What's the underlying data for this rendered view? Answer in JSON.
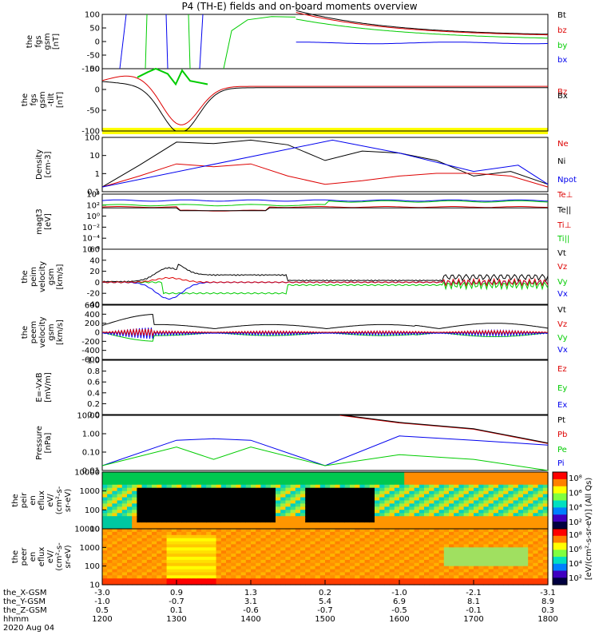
{
  "title": "P4 (TH-E) fields and on-board moments overview",
  "chart_data": {
    "type": "line",
    "date": "2020 Aug 04",
    "x_tick_labels": [
      "1200",
      "1300",
      "1400",
      "1500",
      "1600",
      "1700",
      "1800"
    ],
    "ephemeris": [
      {
        "label": "the_X-GSM",
        "values": [
          "-3.0",
          "0.9",
          "1.3",
          "0.2",
          "-1.0",
          "-2.1",
          "-3.1"
        ]
      },
      {
        "label": "the_Y-GSM",
        "values": [
          "-1.0",
          "-0.7",
          "3.1",
          "5.4",
          "6.9",
          "8.1",
          "8.9"
        ]
      },
      {
        "label": "the_Z-GSM",
        "values": [
          "0.5",
          "0.1",
          "-0.6",
          "-0.7",
          "-0.5",
          "-0.1",
          "0.3"
        ]
      },
      {
        "label": "hhmm",
        "values": [
          "1200",
          "1300",
          "1400",
          "1500",
          "1600",
          "1700",
          "1800"
        ]
      }
    ],
    "panels": [
      {
        "id": "fgs",
        "ylabel": [
          "the",
          "fgs",
          "gsm",
          "[nT]"
        ],
        "ylim": [
          -100,
          100
        ],
        "yticks": [
          "100",
          "50",
          "0",
          "-50",
          "-100"
        ],
        "legend": [
          {
            "name": "Bt",
            "color": "#000000"
          },
          {
            "name": "bz",
            "color": "#dd0000"
          },
          {
            "name": "by",
            "color": "#00cc00"
          },
          {
            "name": "bx",
            "color": "#0000ee"
          }
        ]
      },
      {
        "id": "fgs-tilt",
        "ylabel": [
          "the",
          "fgs",
          "gsm",
          "-tilt",
          "[nT]"
        ],
        "ylim": [
          -125,
          55
        ],
        "yticks": [
          "50",
          "0",
          "-50",
          "-100"
        ],
        "legend": [
          {
            "name": "Bz",
            "color": "#dd0000"
          },
          {
            "name": "Bx",
            "color": "#000000"
          }
        ]
      },
      {
        "id": "density",
        "ylabel": [
          "Density",
          "[cm-3]"
        ],
        "ylim": [
          0.1,
          300
        ],
        "yticks": [
          "100",
          "10",
          "1",
          "0.1"
        ],
        "legend": [
          {
            "name": "Ne",
            "color": "#dd0000"
          },
          {
            "name": "Ni",
            "color": "#000000"
          },
          {
            "name": "Npot",
            "color": "#0000ee"
          }
        ]
      },
      {
        "id": "temperature",
        "ylabel": [
          "magt3",
          "[eV]"
        ],
        "ylim": [
          1e-07,
          100000.0
        ],
        "yticks": [
          "10⁴",
          "10²",
          "10⁰",
          "10⁻²",
          "10⁻⁴",
          "10⁻⁶"
        ],
        "legend": [
          {
            "name": "Te⊥",
            "color": "#dd0000"
          },
          {
            "name": "Te||",
            "color": "#000000"
          },
          {
            "name": "Ti⊥",
            "color": "#dd0000"
          },
          {
            "name": "Ti||",
            "color": "#00cc00"
          }
        ]
      },
      {
        "id": "peim",
        "ylabel": [
          "the",
          "peim",
          "velocity",
          "gsm",
          "[km/s]"
        ],
        "ylim": [
          -40,
          60
        ],
        "yticks": [
          "60",
          "40",
          "20",
          "0",
          "-20",
          "-40"
        ],
        "legend": [
          {
            "name": "Vt",
            "color": "#000000"
          },
          {
            "name": "Vz",
            "color": "#dd0000"
          },
          {
            "name": "Vy",
            "color": "#00cc00"
          },
          {
            "name": "Vx",
            "color": "#0000ee"
          }
        ]
      },
      {
        "id": "peem",
        "ylabel": [
          "the",
          "peem",
          "velocity",
          "gsm",
          "[km/s]"
        ],
        "ylim": [
          -600,
          600
        ],
        "yticks": [
          "600",
          "400",
          "200",
          "0",
          "-200",
          "-400",
          "-600"
        ],
        "legend": [
          {
            "name": "Vt",
            "color": "#000000"
          },
          {
            "name": "Vz",
            "color": "#dd0000"
          },
          {
            "name": "Vy",
            "color": "#00cc00"
          },
          {
            "name": "Vx",
            "color": "#0000ee"
          }
        ]
      },
      {
        "id": "efield",
        "ylabel": [
          "E=-VxB",
          "[mV/m]"
        ],
        "ylim": [
          0,
          1
        ],
        "yticks": [
          "1.0",
          "0.8",
          "0.6",
          "0.4",
          "0.2",
          "0.0"
        ],
        "legend": [
          {
            "name": "Ez",
            "color": "#dd0000"
          },
          {
            "name": "Ey",
            "color": "#00cc00"
          },
          {
            "name": "Ex",
            "color": "#0000ee"
          }
        ]
      },
      {
        "id": "pressure",
        "ylabel": [
          "Pressure",
          "[nPa]"
        ],
        "ylim": [
          0.01,
          30
        ],
        "yticks": [
          "10.00",
          "1.00",
          "0.10",
          "0.01"
        ],
        "legend": [
          {
            "name": "Pt",
            "color": "#000000"
          },
          {
            "name": "Pb",
            "color": "#dd0000"
          },
          {
            "name": "Pe",
            "color": "#00cc00"
          },
          {
            "name": "Pi",
            "color": "#0000ee"
          }
        ]
      },
      {
        "id": "peir",
        "ylabel": [
          "the",
          "peir",
          "en",
          "eflux",
          "eV/",
          "(cm²-s-",
          "sr-eV)"
        ],
        "ylim": [
          5,
          20000
        ],
        "yticks": [
          "10000",
          "1000",
          "100",
          "10"
        ],
        "colorbar_label": "[eV/(cm²-s-sr-eV)] (All Qs)"
      },
      {
        "id": "peer",
        "ylabel": [
          "the",
          "peer",
          "en",
          "eflux",
          "eV/",
          "(cm²-s-",
          "sr-eV)"
        ],
        "ylim": [
          5,
          20000
        ],
        "yticks": [
          "10000",
          "1000",
          "100",
          "10"
        ],
        "colorbar_label": "[eV/(cm²-s-sr-eV)]"
      }
    ],
    "colorbar_ticks": [
      "10⁸",
      "10⁶",
      "10⁴",
      "10²"
    ],
    "series_samples": {
      "density_Ne": [
        [
          0,
          0.2
        ],
        [
          0.5,
          1
        ],
        [
          1,
          6
        ],
        [
          1.5,
          4
        ],
        [
          2,
          6
        ],
        [
          2.5,
          1
        ],
        [
          3,
          0.3
        ],
        [
          3.5,
          0.5
        ],
        [
          4,
          1
        ],
        [
          4.5,
          1.5
        ],
        [
          5,
          1.5
        ],
        [
          5.5,
          1
        ],
        [
          6,
          0.2
        ]
      ],
      "density_Ni": [
        [
          0,
          0.2
        ],
        [
          0.5,
          5
        ],
        [
          1,
          150
        ],
        [
          1.5,
          120
        ],
        [
          2,
          200
        ],
        [
          2.5,
          100
        ],
        [
          3,
          10
        ],
        [
          3.5,
          40
        ],
        [
          4,
          30
        ],
        [
          4.5,
          10
        ],
        [
          5,
          1
        ],
        [
          5.5,
          2
        ],
        [
          6,
          0.3
        ]
      ],
      "density_Npot": [
        [
          0,
          0.2
        ],
        [
          3.1,
          200
        ],
        [
          4,
          30
        ],
        [
          5,
          2
        ],
        [
          5.6,
          5
        ],
        [
          6,
          0.3
        ]
      ],
      "pressure_Pi": [
        [
          0,
          0.02
        ],
        [
          1,
          0.8
        ],
        [
          1.5,
          1
        ],
        [
          2,
          0.8
        ],
        [
          3,
          0.02
        ],
        [
          4,
          1.5
        ],
        [
          5,
          0.8
        ],
        [
          6,
          0.4
        ]
      ],
      "pressure_Pe": [
        [
          0,
          0.02
        ],
        [
          1,
          0.3
        ],
        [
          1.5,
          0.05
        ],
        [
          2,
          0.3
        ],
        [
          3,
          0.02
        ],
        [
          4,
          0.1
        ],
        [
          5,
          0.05
        ],
        [
          6,
          0.01
        ]
      ],
      "pressure_Pb": [
        [
          3.2,
          30
        ],
        [
          4,
          10
        ],
        [
          5,
          4
        ],
        [
          6,
          0.5
        ]
      ]
    }
  }
}
